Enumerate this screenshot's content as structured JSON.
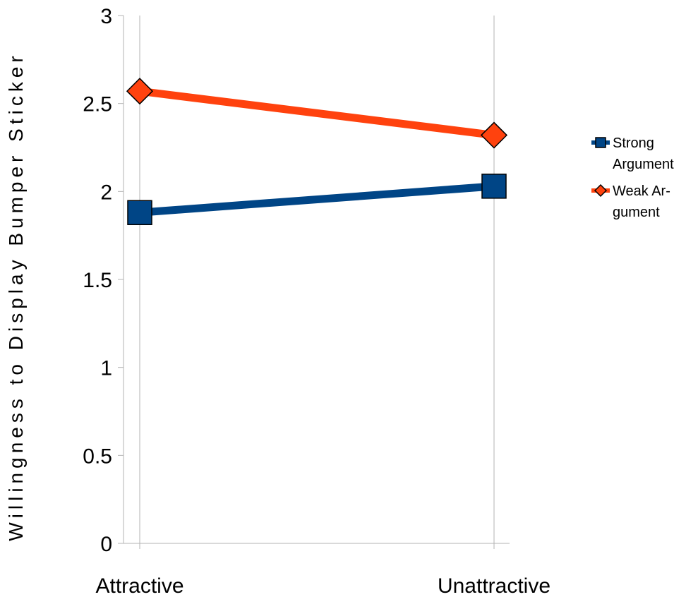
{
  "chart_data": {
    "type": "line",
    "title": "",
    "xlabel": "",
    "ylabel": "Willingness to Display Bumper Sticker",
    "categories": [
      "Attractive",
      "Unattractive"
    ],
    "ylim": [
      0,
      3
    ],
    "yticks": [
      "0",
      "0.5",
      "1",
      "1.5",
      "2",
      "2.5",
      "3"
    ],
    "grid": "vertical",
    "legend": "right",
    "series": [
      {
        "name": "Strong Argument",
        "legend_lines": [
          "Strong",
          "Argument"
        ],
        "marker": "square",
        "color": "#004586",
        "values": [
          1.88,
          2.03
        ]
      },
      {
        "name": "Weak Argument",
        "legend_lines": [
          "Weak Ar-",
          "gument"
        ],
        "marker": "diamond",
        "color": "#ff420e",
        "values": [
          2.57,
          2.32
        ]
      }
    ]
  }
}
